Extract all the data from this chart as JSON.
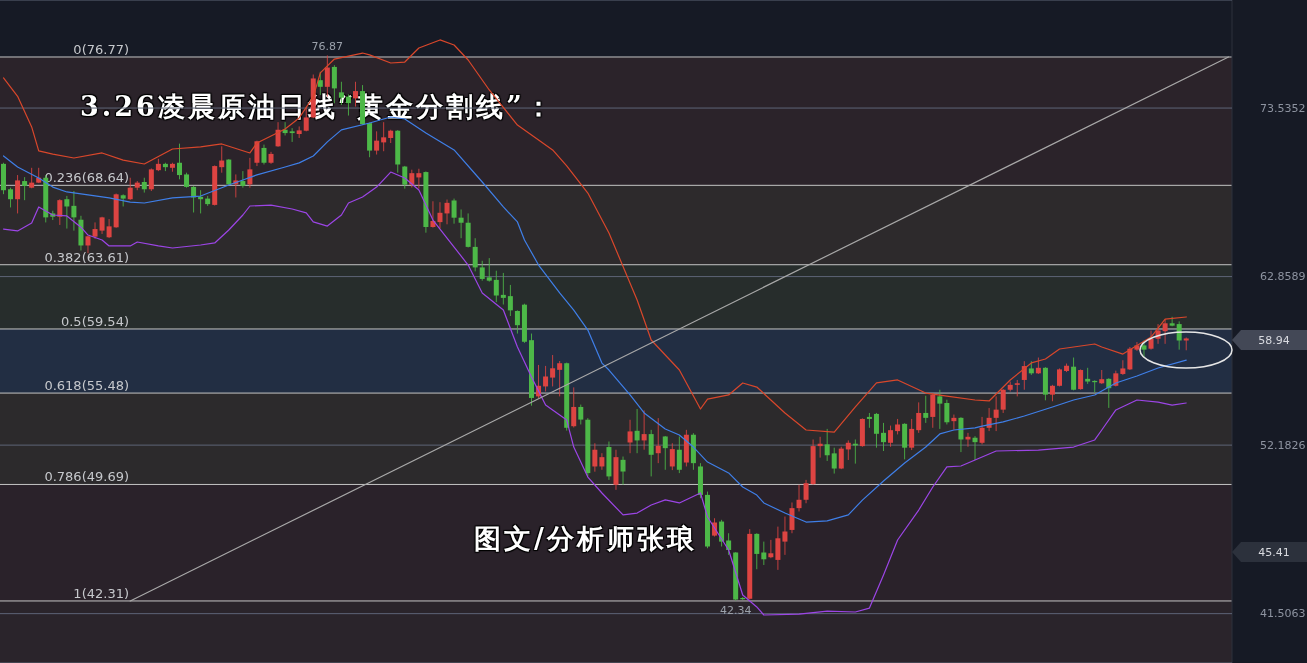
{
  "chart_data": {
    "type": "candlestick",
    "title": "3.26凌晨原油日线“黄金分割线”：",
    "categories": [
      null,
      null,
      null,
      null,
      null,
      null,
      null,
      null,
      null,
      null,
      null,
      null,
      null,
      null,
      null,
      null,
      null,
      null,
      null,
      null,
      null,
      null,
      null,
      null,
      null,
      null,
      null,
      null,
      null,
      null,
      null,
      null,
      null,
      null,
      null,
      null,
      null,
      null,
      null,
      null,
      null,
      null,
      null,
      null,
      null,
      null,
      null,
      null,
      null,
      null,
      null,
      null,
      null,
      null,
      null,
      null,
      null,
      null,
      null,
      null,
      null,
      null,
      null,
      null,
      null,
      null,
      null,
      null,
      null,
      null,
      null,
      null,
      null,
      null,
      null,
      null,
      null,
      null,
      null,
      null,
      null,
      null,
      null,
      null,
      null,
      null,
      null,
      null,
      null,
      null,
      null,
      null,
      null,
      null,
      null,
      null,
      null,
      null,
      null,
      null,
      null,
      null,
      null,
      null,
      null,
      null,
      null,
      null,
      null,
      null,
      null,
      null,
      null,
      null,
      null,
      null,
      null,
      null,
      null,
      null,
      null,
      null,
      null,
      null,
      null,
      null,
      null,
      null,
      null,
      null,
      null,
      null,
      null,
      null,
      null,
      null,
      null,
      null,
      null,
      null,
      null,
      null,
      null,
      null,
      null,
      null,
      null,
      null,
      null,
      null,
      null,
      null,
      null,
      null,
      null,
      null,
      null,
      null,
      null,
      null,
      null,
      null,
      null,
      null,
      null,
      null,
      null,
      null,
      null,
      null,
      null,
      null,
      null,
      null,
      null
    ],
    "ohlc": [
      [
        70.0,
        70.07,
        68.08,
        68.33
      ],
      [
        68.39,
        68.49,
        67.24,
        67.76
      ],
      [
        67.76,
        69.29,
        66.86,
        68.95
      ],
      [
        68.91,
        69.16,
        67.7,
        68.6
      ],
      [
        68.49,
        69.75,
        68.45,
        68.81
      ],
      [
        68.81,
        69.75,
        68.78,
        69.12
      ],
      [
        69.12,
        69.29,
        66.29,
        66.61
      ],
      [
        66.86,
        67.03,
        66.44,
        66.65
      ],
      [
        66.65,
        67.76,
        66.13,
        67.7
      ],
      [
        67.76,
        67.97,
        65.9,
        67.3
      ],
      [
        67.34,
        68.28,
        65.77,
        66.61
      ],
      [
        66.46,
        66.71,
        64.51,
        64.83
      ],
      [
        64.83,
        65.45,
        64.34,
        65.41
      ],
      [
        65.39,
        66.29,
        65.25,
        65.87
      ],
      [
        65.77,
        66.65,
        65.56,
        66.61
      ],
      [
        65.35,
        66.5,
        65.3,
        66.04
      ],
      [
        65.98,
        68.12,
        65.95,
        68.07
      ],
      [
        68.01,
        68.07,
        67.3,
        67.8
      ],
      [
        67.76,
        69.12,
        67.72,
        68.49
      ],
      [
        68.49,
        68.91,
        68.33,
        68.81
      ],
      [
        68.85,
        69.12,
        68.18,
        68.39
      ],
      [
        68.39,
        69.71,
        68.28,
        69.65
      ],
      [
        69.6,
        70.32,
        69.54,
        70.0
      ],
      [
        70.0,
        70.07,
        69.54,
        69.79
      ],
      [
        69.75,
        70.07,
        69.5,
        70.0
      ],
      [
        70.07,
        71.28,
        69.02,
        69.29
      ],
      [
        69.33,
        69.44,
        68.49,
        68.54
      ],
      [
        68.54,
        68.6,
        66.92,
        67.87
      ],
      [
        67.91,
        68.33,
        66.86,
        67.76
      ],
      [
        67.8,
        67.97,
        67.34,
        67.45
      ],
      [
        67.4,
        69.9,
        67.36,
        69.86
      ],
      [
        69.79,
        71.11,
        69.44,
        70.21
      ],
      [
        70.27,
        70.3,
        68.66,
        68.7
      ],
      [
        68.7,
        69.33,
        67.87,
        68.95
      ],
      [
        68.91,
        69.54,
        68.49,
        68.6
      ],
      [
        68.7,
        70.38,
        68.49,
        69.65
      ],
      [
        70.07,
        71.47,
        69.86,
        71.43
      ],
      [
        71.01,
        71.22,
        69.96,
        70.07
      ],
      [
        70.07,
        70.76,
        70.0,
        70.63
      ],
      [
        71.11,
        72.64,
        71.08,
        72.16
      ],
      [
        72.16,
        72.64,
        71.8,
        71.95
      ],
      [
        72.06,
        72.26,
        71.39,
        71.95
      ],
      [
        71.89,
        72.37,
        71.64,
        72.12
      ],
      [
        72.1,
        73.56,
        72.06,
        72.94
      ],
      [
        72.94,
        75.66,
        72.9,
        75.41
      ],
      [
        75.3,
        75.83,
        74.36,
        74.88
      ],
      [
        74.88,
        76.87,
        74.26,
        76.1
      ],
      [
        76.14,
        76.25,
        73.84,
        74.78
      ],
      [
        74.53,
        75.2,
        73.73,
        74.19
      ],
      [
        74.26,
        74.4,
        73.06,
        73.84
      ],
      [
        74.15,
        75.2,
        73.63,
        74.61
      ],
      [
        74.61,
        74.99,
        72.48,
        72.52
      ],
      [
        72.58,
        72.62,
        70.42,
        70.84
      ],
      [
        70.84,
        72.06,
        70.59,
        71.47
      ],
      [
        71.36,
        72.64,
        70.8,
        71.68
      ],
      [
        71.64,
        72.16,
        71.32,
        72.1
      ],
      [
        72.1,
        72.14,
        69.44,
        69.96
      ],
      [
        69.83,
        69.87,
        68.43,
        68.68
      ],
      [
        68.68,
        69.63,
        68.5,
        69.41
      ],
      [
        69.14,
        69.69,
        68.43,
        69.41
      ],
      [
        69.48,
        69.52,
        65.64,
        66.0
      ],
      [
        66.0,
        67.63,
        65.96,
        66.38
      ],
      [
        66.31,
        67.57,
        65.91,
        66.9
      ],
      [
        66.86,
        67.74,
        66.17,
        67.53
      ],
      [
        67.68,
        67.8,
        66.21,
        66.59
      ],
      [
        66.59,
        67.11,
        65.29,
        66.27
      ],
      [
        66.27,
        66.86,
        64.7,
        64.74
      ],
      [
        64.74,
        65.29,
        63.19,
        63.44
      ],
      [
        63.44,
        63.86,
        62.6,
        62.71
      ],
      [
        62.81,
        64.03,
        62.54,
        62.6
      ],
      [
        62.65,
        63.23,
        61.24,
        61.66
      ],
      [
        61.7,
        63.09,
        61.09,
        61.51
      ],
      [
        61.62,
        62.33,
        60.36,
        60.72
      ],
      [
        60.68,
        60.72,
        59.25,
        59.78
      ],
      [
        61.08,
        61.14,
        58.66,
        58.73
      ],
      [
        58.83,
        59.25,
        54.68,
        55.17
      ],
      [
        55.27,
        57.26,
        55.17,
        55.94
      ],
      [
        55.9,
        57.2,
        55.58,
        56.53
      ],
      [
        56.46,
        57.89,
        55.9,
        57.05
      ],
      [
        56.95,
        57.51,
        55.27,
        57.37
      ],
      [
        57.37,
        57.41,
        53.1,
        53.28
      ],
      [
        53.38,
        55.84,
        53.3,
        54.6
      ],
      [
        54.6,
        54.75,
        53.49,
        53.8
      ],
      [
        53.79,
        53.89,
        50.2,
        50.41
      ],
      [
        50.83,
        52.3,
        50.5,
        51.89
      ],
      [
        50.83,
        51.67,
        50.62,
        51.42
      ],
      [
        52.06,
        52.41,
        49.98,
        50.2
      ],
      [
        49.67,
        51.89,
        49.35,
        51.42
      ],
      [
        51.25,
        51.46,
        49.67,
        50.51
      ],
      [
        52.35,
        53.79,
        51.67,
        53.05
      ],
      [
        53.09,
        54.47,
        51.67,
        52.48
      ],
      [
        52.48,
        54.38,
        51.89,
        52.88
      ],
      [
        52.88,
        53.15,
        50.2,
        51.57
      ],
      [
        51.67,
        53.89,
        51.04,
        52.14
      ],
      [
        52.73,
        52.76,
        50.62,
        51.99
      ],
      [
        50.83,
        52.3,
        50.6,
        51.93
      ],
      [
        51.89,
        52.73,
        50.41,
        50.62
      ],
      [
        51.08,
        53.15,
        50.83,
        52.84
      ],
      [
        52.84,
        52.94,
        50.62,
        51.04
      ],
      [
        50.83,
        51.04,
        48.82,
        49.03
      ],
      [
        49.03,
        49.24,
        45.65,
        45.76
      ],
      [
        46.45,
        47.55,
        46.39,
        47.28
      ],
      [
        47.34,
        47.45,
        45.76,
        46.07
      ],
      [
        46.14,
        46.6,
        45.23,
        45.54
      ],
      [
        45.38,
        45.4,
        42.34,
        42.4
      ],
      [
        42.5,
        42.55,
        42.38,
        42.42
      ],
      [
        42.45,
        46.86,
        42.4,
        46.56
      ],
      [
        46.56,
        46.6,
        44.32,
        45.29
      ],
      [
        45.38,
        46.07,
        44.59,
        44.95
      ],
      [
        45.08,
        46.18,
        45.02,
        45.33
      ],
      [
        44.91,
        47.02,
        44.28,
        46.28
      ],
      [
        46.07,
        47.66,
        45.23,
        46.71
      ],
      [
        46.81,
        48.55,
        46.6,
        48.19
      ],
      [
        48.19,
        49.67,
        47.98,
        48.72
      ],
      [
        48.72,
        49.98,
        48.5,
        49.77
      ],
      [
        49.71,
        52.54,
        49.68,
        52.12
      ],
      [
        52.12,
        52.71,
        51.39,
        52.27
      ],
      [
        52.23,
        53.21,
        51.18,
        51.54
      ],
      [
        51.66,
        52.02,
        50.38,
        50.7
      ],
      [
        50.7,
        52.08,
        50.66,
        51.96
      ],
      [
        51.91,
        52.48,
        51.24,
        52.33
      ],
      [
        52.27,
        52.54,
        51.01,
        52.16
      ],
      [
        52.12,
        53.88,
        52.08,
        53.84
      ],
      [
        53.97,
        54.22,
        53.28,
        53.84
      ],
      [
        54.16,
        54.22,
        52.02,
        52.9
      ],
      [
        52.96,
        53.59,
        51.81,
        52.37
      ],
      [
        52.33,
        53.42,
        52.08,
        53.13
      ],
      [
        53.07,
        53.84,
        52.86,
        53.49
      ],
      [
        53.53,
        53.57,
        51.28,
        52.02
      ],
      [
        52.02,
        53.84,
        51.87,
        53.21
      ],
      [
        53.13,
        54.89,
        52.96,
        54.22
      ],
      [
        54.22,
        55.31,
        53.59,
        53.91
      ],
      [
        53.97,
        55.48,
        53.28,
        55.37
      ],
      [
        55.27,
        55.69,
        53.21,
        54.81
      ],
      [
        54.85,
        55.06,
        53.49,
        53.63
      ],
      [
        53.7,
        54.12,
        53.17,
        53.91
      ],
      [
        53.91,
        53.95,
        51.74,
        52.54
      ],
      [
        52.54,
        52.96,
        52.08,
        52.71
      ],
      [
        52.65,
        52.75,
        51.24,
        52.37
      ],
      [
        52.33,
        53.97,
        52.23,
        53.28
      ],
      [
        53.28,
        54.53,
        53.07,
        53.91
      ],
      [
        53.91,
        55.27,
        53.07,
        54.43
      ],
      [
        54.43,
        55.73,
        54.22,
        55.69
      ],
      [
        55.69,
        56.21,
        55.58,
        56.0
      ],
      [
        56.0,
        56.31,
        55.27,
        56.1
      ],
      [
        56.31,
        57.5,
        55.69,
        57.19
      ],
      [
        57.04,
        57.5,
        56.63,
        56.73
      ],
      [
        56.73,
        57.73,
        56.69,
        57.08
      ],
      [
        57.08,
        57.12,
        55.02,
        55.38
      ],
      [
        55.38,
        56.0,
        54.96,
        55.94
      ],
      [
        55.94,
        57.04,
        55.9,
        56.98
      ],
      [
        56.88,
        57.35,
        56.81,
        57.21
      ],
      [
        57.15,
        57.73,
        55.65,
        55.69
      ],
      [
        55.73,
        56.98,
        55.69,
        56.94
      ],
      [
        56.38,
        57.08,
        56.06,
        56.21
      ],
      [
        56.25,
        56.29,
        55.52,
        56.17
      ],
      [
        56.1,
        56.94,
        56.06,
        56.36
      ],
      [
        56.38,
        56.42,
        54.54,
        55.79
      ],
      [
        55.94,
        56.9,
        55.9,
        56.73
      ],
      [
        56.69,
        57.56,
        56.63,
        57.04
      ],
      [
        56.98,
        58.4,
        56.94,
        58.29
      ],
      [
        58.23,
        58.71,
        58.15,
        58.5
      ],
      [
        58.5,
        58.81,
        57.73,
        58.23
      ],
      [
        58.29,
        59.44,
        58.23,
        58.92
      ],
      [
        58.92,
        59.85,
        58.6,
        59.44
      ],
      [
        59.4,
        60.16,
        58.6,
        59.9
      ],
      [
        59.9,
        60.31,
        59.71,
        59.75
      ],
      [
        59.85,
        60.02,
        58.23,
        58.81
      ],
      [
        58.81,
        59.0,
        58.19,
        58.94
      ],
      null,
      null,
      null,
      null,
      null,
      null
    ],
    "colors": [
      "#4db848",
      "#4db848",
      "#dd4442",
      "#4db848",
      "#dd4442",
      "#dd4442",
      "#4db848",
      "#4db848",
      "#dd4442",
      "#4db848",
      "#4db848",
      "#4db848",
      "#dd4442",
      "#dd4442",
      "#dd4442",
      "#dd4442",
      "#dd4442",
      "#4db848",
      "#dd4442",
      "#dd4442",
      "#4db848",
      "#dd4442",
      "#dd4442",
      "#4db848",
      "#dd4442",
      "#4db848",
      "#4db848",
      "#4db848",
      "#4db848",
      "#4db848",
      "#dd4442",
      "#dd4442",
      "#4db848",
      "#dd4442",
      "#4db848",
      "#dd4442",
      "#dd4442",
      "#4db848",
      "#dd4442",
      "#dd4442",
      "#4db848",
      "#4db848",
      "#dd4442",
      "#dd4442",
      "#dd4442",
      "#4db848",
      "#dd4442",
      "#4db848",
      "#4db848",
      "#4db848",
      "#dd4442",
      "#4db848",
      "#4db848",
      "#dd4442",
      "#dd4442",
      "#dd4442",
      "#4db848",
      "#4db848",
      "#dd4442",
      "#dd4442",
      "#4db848",
      "#dd4442",
      "#dd4442",
      "#dd4442",
      "#4db848",
      "#4db848",
      "#4db848",
      "#4db848",
      "#4db848",
      "#4db848",
      "#4db848",
      "#4db848",
      "#4db848",
      "#4db848",
      "#4db848",
      "#4db848",
      "#dd4442",
      "#dd4442",
      "#dd4442",
      "#dd4442",
      "#4db848",
      "#dd4442",
      "#4db848",
      "#4db848",
      "#dd4442",
      "#dd4442",
      "#4db848",
      "#dd4442",
      "#4db848",
      "#dd4442",
      "#4db848",
      "#dd4442",
      "#4db848",
      "#dd4442",
      "#4db848",
      "#dd4442",
      "#4db848",
      "#dd4442",
      "#4db848",
      "#4db848",
      "#4db848",
      "#dd4442",
      "#4db848",
      "#4db848",
      "#4db848",
      "#4db848",
      "#dd4442",
      "#4db848",
      "#4db848",
      "#dd4442",
      "#dd4442",
      "#dd4442",
      "#dd4442",
      "#dd4442",
      "#dd4442",
      "#dd4442",
      "#dd4442",
      "#4db848",
      "#4db848",
      "#dd4442",
      "#dd4442",
      "#4db848",
      "#dd4442",
      "#4db848",
      "#4db848",
      "#4db848",
      "#dd4442",
      "#dd4442",
      "#4db848",
      "#dd4442",
      "#dd4442",
      "#4db848",
      "#dd4442",
      "#4db848",
      "#4db848",
      "#dd4442",
      "#4db848",
      "#dd4442",
      "#4db848",
      "#dd4442",
      "#dd4442",
      "#dd4442",
      "#dd4442",
      "#dd4442",
      "#dd4442",
      "#dd4442",
      "#4db848",
      "#dd4442",
      "#4db848",
      "#dd4442",
      "#dd4442",
      "#dd4442",
      "#4db848",
      "#dd4442",
      "#4db848",
      "#4db848",
      "#dd4442",
      "#4db848",
      "#dd4442",
      "#dd4442",
      "#dd4442",
      "#dd4442",
      "#4db848",
      "#dd4442",
      "#dd4442",
      "#dd4442",
      "#4db848",
      "#4db848",
      "#dd4442",
      null,
      null,
      null,
      null,
      null,
      null
    ],
    "series": [
      {
        "type": "line",
        "color": "#d9472b",
        "values": [
          75.44,
          null,
          74.28,
          null,
          72.34,
          70.82,
          null,
          70.62,
          null,
          null,
          70.37,
          null,
          null,
          null,
          70.69,
          null,
          null,
          70.24,
          null,
          null,
          69.99,
          null,
          null,
          null,
          70.94,
          null,
          null,
          null,
          71.07,
          null,
          null,
          71.26,
          null,
          null,
          null,
          70.69,
          71.32,
          null,
          null,
          null,
          72.21,
          null,
          72.91,
          null,
          74.24,
          75.76,
          null,
          76.64,
          null,
          null,
          null,
          77.02,
          76.9,
          null,
          null,
          76.39,
          null,
          76.45,
          null,
          77.34,
          null,
          null,
          77.85,
          null,
          77.53,
          null,
          76.58,
          null,
          null,
          74.68,
          null,
          null,
          null,
          72.46,
          null,
          null,
          null,
          null,
          70.88,
          null,
          69.87,
          null,
          null,
          68.15,
          null,
          null,
          65.62,
          null,
          null,
          null,
          61.38,
          null,
          58.84,
          null,
          null,
          null,
          56.94,
          null,
          null,
          54.47,
          55.1,
          null,
          null,
          55.36,
          null,
          56.12,
          null,
          55.86,
          null,
          null,
          null,
          54.22,
          null,
          null,
          53.14,
          null,
          null,
          null,
          53.01,
          null,
          null,
          54.6,
          null,
          null,
          56.12,
          null,
          null,
          56.31,
          null,
          null,
          null,
          55.48,
          null,
          null,
          55.29,
          null,
          null,
          null,
          55.04,
          null,
          54.98,
          null,
          null,
          56.31,
          null,
          null,
          57.39,
          null,
          57.64,
          null,
          58.27,
          null,
          null,
          null,
          null,
          58.59,
          58.4,
          null,
          null,
          57.95,
          null,
          null,
          null,
          59.03,
          null,
          60.17,
          null,
          null,
          60.3,
          null,
          null,
          null,
          null,
          null,
          null
        ]
      },
      {
        "type": "line",
        "color": "#3f7fe8",
        "values": [
          70.5,
          null,
          69.8,
          null,
          null,
          69.1,
          null,
          68.53,
          null,
          68.22,
          null,
          null,
          68.03,
          null,
          null,
          67.84,
          null,
          null,
          67.58,
          null,
          67.52,
          null,
          null,
          null,
          67.84,
          null,
          null,
          null,
          67.96,
          null,
          null,
          null,
          68.66,
          null,
          68.98,
          null,
          69.3,
          null,
          null,
          null,
          69.8,
          null,
          70.06,
          null,
          70.5,
          null,
          71.39,
          null,
          72.15,
          null,
          null,
          null,
          72.59,
          null,
          null,
          72.97,
          null,
          72.84,
          null,
          null,
          71.96,
          null,
          null,
          null,
          70.88,
          null,
          null,
          null,
          68.85,
          null,
          null,
          67.27,
          null,
          66.32,
          65.18,
          null,
          63.59,
          null,
          null,
          61.82,
          null,
          60.74,
          null,
          59.47,
          null,
          57.38,
          56.94,
          null,
          null,
          55.36,
          null,
          54.22,
          null,
          null,
          53.2,
          null,
          52.82,
          null,
          52.06,
          null,
          51.11,
          null,
          null,
          50.42,
          null,
          49.53,
          null,
          49.02,
          48.52,
          null,
          null,
          47.88,
          null,
          47.5,
          47.31,
          null,
          null,
          47.38,
          null,
          null,
          47.76,
          null,
          48.7,
          null,
          null,
          49.91,
          null,
          null,
          51.05,
          null,
          null,
          52.06,
          null,
          52.89,
          null,
          53.14,
          null,
          null,
          53.27,
          53.39,
          null,
          null,
          53.65,
          null,
          null,
          54.03,
          null,
          null,
          null,
          54.6,
          null,
          null,
          55.04,
          null,
          null,
          55.36,
          null,
          null,
          56.12,
          null,
          null,
          56.56,
          null,
          null,
          57.07,
          null,
          null,
          null,
          57.57,
          null,
          null,
          null,
          null,
          null,
          null
        ]
      },
      {
        "type": "line",
        "color": "#9c45e6",
        "values": [
          65.87,
          null,
          65.75,
          null,
          66.25,
          67.27,
          null,
          66.76,
          null,
          66.7,
          null,
          65.99,
          65.49,
          null,
          65.18,
          64.8,
          null,
          null,
          64.8,
          65.05,
          null,
          null,
          64.8,
          null,
          64.67,
          null,
          null,
          null,
          64.86,
          null,
          64.99,
          null,
          65.81,
          null,
          66.76,
          67.33,
          null,
          null,
          67.39,
          null,
          null,
          67.14,
          null,
          66.89,
          66.32,
          null,
          66.06,
          null,
          66.76,
          67.52,
          null,
          67.9,
          null,
          68.53,
          null,
          69.48,
          null,
          69.1,
          null,
          68.34,
          null,
          66.44,
          null,
          65.3,
          null,
          null,
          63.59,
          null,
          61.82,
          null,
          null,
          60.74,
          null,
          58.4,
          null,
          56.5,
          null,
          54.72,
          null,
          54.09,
          53.77,
          52.06,
          null,
          50.16,
          null,
          49.15,
          null,
          null,
          47.76,
          null,
          47.88,
          null,
          48.39,
          null,
          48.71,
          null,
          48.52,
          null,
          null,
          49.15,
          47.63,
          null,
          null,
          45.54,
          null,
          42.69,
          null,
          41.93,
          41.42,
          null,
          null,
          null,
          null,
          41.48,
          null,
          null,
          null,
          41.67,
          null,
          null,
          null,
          41.61,
          null,
          41.86,
          null,
          43.95,
          null,
          46.17,
          null,
          null,
          48.07,
          null,
          49.53,
          null,
          50.8,
          null,
          50.86,
          null,
          51.24,
          null,
          null,
          51.81,
          null,
          null,
          null,
          null,
          null,
          51.87,
          null,
          null,
          null,
          null,
          52.06,
          null,
          null,
          52.51,
          53.14,
          null,
          54.41,
          null,
          null,
          55.04,
          null,
          null,
          54.91,
          null,
          54.72,
          null,
          54.85,
          null,
          null,
          null,
          null,
          null,
          null
        ]
      },
      {
        "type": "line",
        "color": "#a8a8a8",
        "values": [
          null,
          null,
          null,
          null,
          null,
          null,
          null,
          null,
          null,
          null,
          null,
          null,
          null,
          null,
          null,
          null,
          null,
          null,
          42.31,
          null,
          null,
          null,
          null,
          null,
          null,
          null,
          null,
          null,
          null,
          null,
          null,
          null,
          null,
          null,
          null,
          null,
          null,
          null,
          null,
          null,
          null,
          null,
          null,
          null,
          null,
          null,
          null,
          null,
          null,
          null,
          null,
          null,
          null,
          null,
          null,
          null,
          null,
          null,
          null,
          null,
          null,
          null,
          null,
          null,
          null,
          null,
          null,
          null,
          null,
          null,
          null,
          null,
          null,
          null,
          null,
          null,
          null,
          null,
          null,
          null,
          null,
          null,
          null,
          null,
          null,
          null,
          null,
          null,
          null,
          null,
          null,
          null,
          null,
          null,
          null,
          null,
          null,
          null,
          null,
          null,
          null,
          null,
          null,
          null,
          null,
          null,
          null,
          null,
          null,
          null,
          null,
          null,
          null,
          null,
          null,
          null,
          null,
          null,
          null,
          null,
          null,
          null,
          null,
          null,
          null,
          null,
          null,
          null,
          null,
          null,
          null,
          null,
          null,
          null,
          null,
          null,
          null,
          null,
          null,
          null,
          null,
          null,
          null,
          null,
          null,
          null,
          null,
          null,
          null,
          null,
          null,
          null,
          null,
          null,
          null,
          null,
          null,
          null,
          null,
          null,
          null,
          null,
          null,
          null,
          null,
          null,
          null,
          null,
          null,
          null,
          null,
          null,
          null,
          null,
          76.77
        ]
      }
    ],
    "ylim": [
      38.38,
      80.38
    ],
    "yticks": [
      73.5352,
      62.8589,
      52.1826,
      41.5063
    ],
    "tick_labels": "y",
    "grid": "y",
    "ref_lines": [
      {
        "axis": "y",
        "value": 76.77,
        "label": "0(76.77)",
        "color": "#c4c4c4"
      },
      {
        "axis": "y",
        "value": 68.64,
        "label": "0.236(68.64)",
        "color": "#c4c4c4"
      },
      {
        "axis": "y",
        "value": 63.61,
        "label": "0.382(63.61)",
        "color": "#c4c4c4"
      },
      {
        "axis": "y",
        "value": 59.54,
        "label": "0.5(59.54)",
        "color": "#c4c4c4"
      },
      {
        "axis": "y",
        "value": 55.48,
        "label": "0.618(55.48)",
        "color": "#c4c4c4"
      },
      {
        "axis": "y",
        "value": 49.69,
        "label": "0.786(49.69)",
        "color": "#c4c4c4"
      },
      {
        "axis": "y",
        "value": 42.31,
        "label": "1(42.31)",
        "color": "#c4c4c4"
      }
    ],
    "bands": [
      {
        "axis": "y",
        "from": 68.64,
        "to": 76.77,
        "color": "#2e252b"
      },
      {
        "axis": "y",
        "from": 63.61,
        "to": 68.64,
        "color": "#302c2e"
      },
      {
        "axis": "y",
        "from": 59.54,
        "to": 63.61,
        "color": "#29302d"
      },
      {
        "axis": "y",
        "from": 55.48,
        "to": 59.54,
        "color": "#233147"
      },
      {
        "axis": "y",
        "from": 49.69,
        "to": 55.48,
        "color": "#2f2c2e"
      },
      {
        "axis": "y",
        "from": 42.31,
        "to": 49.69,
        "color": "#2c232b"
      },
      {
        "axis": "y",
        "from": 38.38,
        "to": 42.31,
        "color": "#2c262c"
      }
    ],
    "annotations": [
      "图文/分析师张琅",
      {
        "text": "76.87",
        "y": 76.87
      },
      {
        "text": "42.34",
        "y": 42.34
      },
      "58.94",
      "45.41"
    ]
  }
}
